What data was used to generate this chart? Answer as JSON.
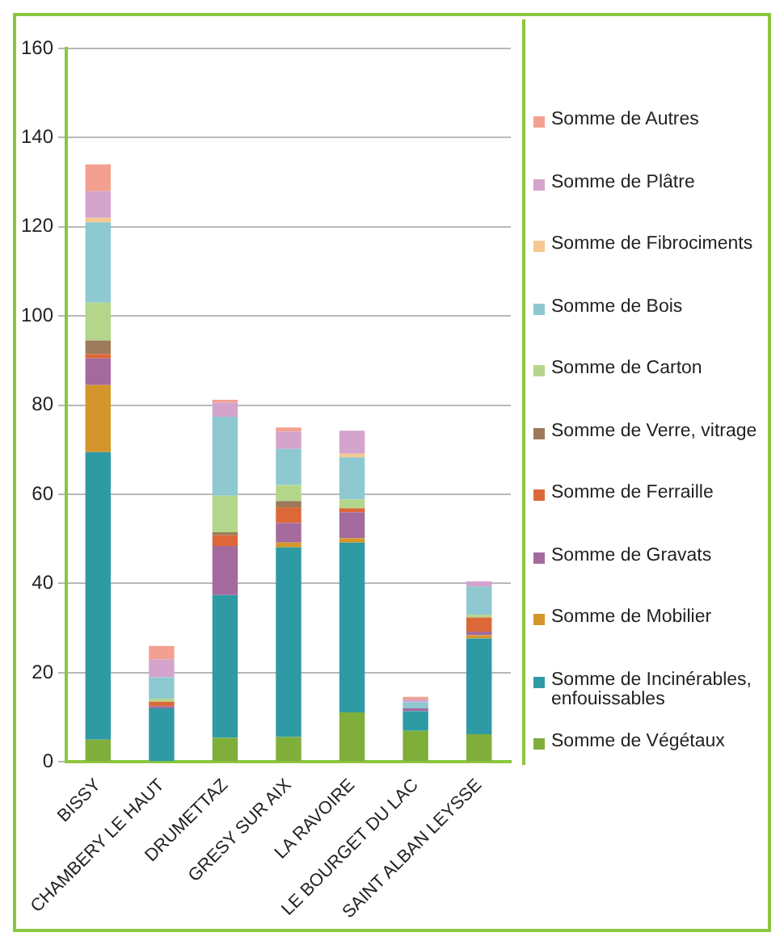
{
  "chart_data": {
    "type": "bar",
    "stacked": true,
    "categories": [
      "BISSY",
      "CHAMBERY LE HAUT",
      "DRUMETTAZ",
      "GRESY SUR AIX",
      "LA RAVOIRE",
      "LE BOURGET DU LAC",
      "SAINT ALBAN LEYSSE"
    ],
    "ylim": [
      0,
      160
    ],
    "yticks": [
      0,
      20,
      40,
      60,
      80,
      100,
      120,
      140,
      160
    ],
    "grid": "y",
    "legend": "right",
    "series": [
      {
        "name": "Somme de Végétaux",
        "color": "#7fae3a",
        "values": [
          5,
          0,
          5.4,
          5.6,
          11.1,
          7,
          6.2
        ]
      },
      {
        "name": "Somme de Incinérables, enfouissables",
        "color": "#2e9aa4",
        "values": [
          64.5,
          12,
          32,
          42.5,
          38.1,
          4.4,
          21.5
        ]
      },
      {
        "name": "Somme de Mobilier",
        "color": "#d4962a",
        "values": [
          15,
          0,
          0,
          1.1,
          1,
          0,
          0.7
        ]
      },
      {
        "name": "Somme de Gravats",
        "color": "#a46a9e",
        "values": [
          6,
          0.5,
          11,
          4.4,
          5.8,
          0.6,
          0.8
        ]
      },
      {
        "name": "Somme de Ferraille",
        "color": "#dc6838",
        "values": [
          1,
          1,
          2.4,
          3.5,
          0.9,
          0,
          3.2
        ]
      },
      {
        "name": "Somme de Verre, vitrage",
        "color": "#9c7a5a",
        "values": [
          3,
          0,
          0.7,
          1.4,
          0,
          0,
          0
        ]
      },
      {
        "name": "Somme de Carton",
        "color": "#b4d68a",
        "values": [
          8.5,
          0.7,
          8.2,
          3.6,
          2,
          0,
          0.6
        ]
      },
      {
        "name": "Somme de Bois",
        "color": "#8ec8d0",
        "values": [
          18,
          4.8,
          17.7,
          8.1,
          9.4,
          1.4,
          6.3
        ]
      },
      {
        "name": "Somme de Fibrociments",
        "color": "#f4c890",
        "values": [
          1,
          0,
          0,
          0,
          0.8,
          0,
          0
        ]
      },
      {
        "name": "Somme de Plâtre",
        "color": "#d4a4cc",
        "values": [
          6,
          4,
          3.2,
          3.9,
          5.2,
          0.6,
          1.2
        ]
      },
      {
        "name": "Somme de Autres",
        "color": "#f4a090",
        "values": [
          6,
          3,
          0.6,
          0.9,
          0,
          0.6,
          0
        ]
      }
    ]
  }
}
